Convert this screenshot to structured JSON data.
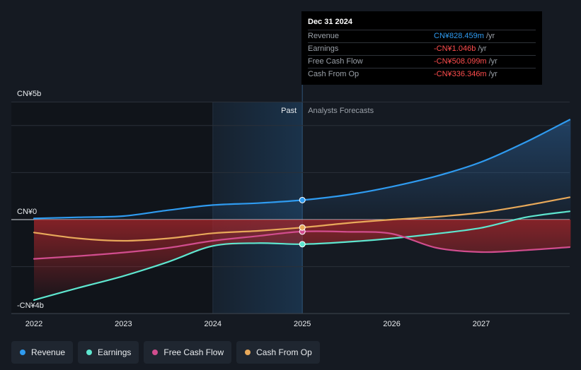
{
  "chart_data": {
    "type": "line",
    "title": "",
    "xlabel": "",
    "ylabel": "",
    "ylim": [
      -4,
      5
    ],
    "xlim": [
      2022,
      2028
    ],
    "y_axis_labels": {
      "top": "CN¥5b",
      "zero": "CN¥0",
      "bottom": "-CN¥4b"
    },
    "x_ticks": [
      "2022",
      "2023",
      "2024",
      "2025",
      "2026",
      "2027"
    ],
    "regions": {
      "past_label": "Past",
      "forecast_label": "Analysts Forecasts",
      "split_year": 2025
    },
    "series": [
      {
        "name": "Revenue",
        "color": "#2f9bf0",
        "points": [
          [
            2022,
            0.05
          ],
          [
            2022.5,
            0.1
          ],
          [
            2023,
            0.15
          ],
          [
            2023.5,
            0.4
          ],
          [
            2024,
            0.62
          ],
          [
            2024.5,
            0.7
          ],
          [
            2025,
            0.83
          ],
          [
            2025.5,
            1.05
          ],
          [
            2026,
            1.4
          ],
          [
            2026.5,
            1.85
          ],
          [
            2027,
            2.45
          ],
          [
            2027.5,
            3.3
          ],
          [
            2028,
            4.25
          ]
        ]
      },
      {
        "name": "Earnings",
        "color": "#5ee6cf",
        "points": [
          [
            2022,
            -3.42
          ],
          [
            2022.5,
            -2.9
          ],
          [
            2023,
            -2.4
          ],
          [
            2023.5,
            -1.8
          ],
          [
            2024,
            -1.12
          ],
          [
            2024.5,
            -1.0
          ],
          [
            2025,
            -1.046
          ],
          [
            2025.5,
            -0.95
          ],
          [
            2026,
            -0.8
          ],
          [
            2026.5,
            -0.6
          ],
          [
            2027,
            -0.35
          ],
          [
            2027.5,
            0.1
          ],
          [
            2028,
            0.35
          ]
        ]
      },
      {
        "name": "Free Cash Flow",
        "color": "#d14d8e",
        "points": [
          [
            2022,
            -1.67
          ],
          [
            2022.5,
            -1.55
          ],
          [
            2023,
            -1.4
          ],
          [
            2023.5,
            -1.2
          ],
          [
            2024,
            -0.9
          ],
          [
            2024.5,
            -0.7
          ],
          [
            2025,
            -0.508
          ],
          [
            2025.5,
            -0.52
          ],
          [
            2026,
            -0.6
          ],
          [
            2026.5,
            -1.2
          ],
          [
            2027,
            -1.38
          ],
          [
            2027.5,
            -1.3
          ],
          [
            2028,
            -1.17
          ]
        ]
      },
      {
        "name": "Cash From Op",
        "color": "#e8a95a",
        "points": [
          [
            2022,
            -0.55
          ],
          [
            2022.5,
            -0.8
          ],
          [
            2023,
            -0.9
          ],
          [
            2023.5,
            -0.8
          ],
          [
            2024,
            -0.58
          ],
          [
            2024.5,
            -0.48
          ],
          [
            2025,
            -0.336
          ],
          [
            2025.5,
            -0.15
          ],
          [
            2026,
            0.0
          ],
          [
            2026.5,
            0.12
          ],
          [
            2027,
            0.3
          ],
          [
            2027.5,
            0.6
          ],
          [
            2028,
            0.95
          ]
        ]
      }
    ]
  },
  "tooltip": {
    "date": "Dec 31 2024",
    "rows": [
      {
        "label": "Revenue",
        "value": "CN¥828.459m",
        "unit": "/yr"
      },
      {
        "label": "Earnings",
        "value": "-CN¥1.046b",
        "unit": "/yr"
      },
      {
        "label": "Free Cash Flow",
        "value": "-CN¥508.099m",
        "unit": "/yr"
      },
      {
        "label": "Cash From Op",
        "value": "-CN¥336.346m",
        "unit": "/yr"
      }
    ]
  },
  "legend": [
    {
      "label": "Revenue",
      "color": "#2f9bf0"
    },
    {
      "label": "Earnings",
      "color": "#5ee6cf"
    },
    {
      "label": "Free Cash Flow",
      "color": "#d14d8e"
    },
    {
      "label": "Cash From Op",
      "color": "#e8a95a"
    }
  ],
  "colors": {
    "background": "#151a22",
    "past_shade": "#0d1014",
    "highlight": "#1b3752",
    "negative_fill": "#a8262b",
    "positive_fill": "#1d3a5c",
    "grid": "#2a3039",
    "zero_line": "#d9dde3",
    "text": "#e9ecef",
    "muted": "#9aa0a8"
  }
}
